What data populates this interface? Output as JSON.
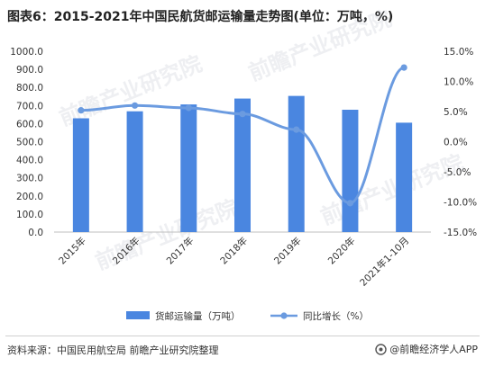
{
  "title": "图表6：2015-2021年中国民航货邮运输量走势图(单位：万吨，%)",
  "source": "资料来源：中国民用航空局 前瞻产业研究院整理",
  "brand": "@前瞻经济学人APP",
  "watermark": "前瞻产业研究院",
  "chart_data": {
    "type": "bar",
    "title": "图表6：2015-2021年中国民航货邮运输量走势图(单位：万吨，%)",
    "categories": [
      "2015年",
      "2016年",
      "2017年",
      "2018年",
      "2019年",
      "2020年",
      "2021年1-10月"
    ],
    "series": [
      {
        "name": "货邮运输量（万吨）",
        "type": "bar",
        "axis": "left",
        "color": "#4A86E0",
        "values": [
          629.3,
          668.0,
          705.9,
          738.5,
          753.1,
          676.6,
          605.0
        ]
      },
      {
        "name": "同比增长（%）",
        "type": "line",
        "axis": "right",
        "color": "#6B9BE0",
        "values": [
          5.2,
          6.0,
          5.6,
          4.6,
          2.0,
          -10.2,
          12.3
        ]
      }
    ],
    "y_left": {
      "min": 0,
      "max": 1000,
      "step": 100,
      "ticks": [
        "0.0",
        "100.0",
        "200.0",
        "300.0",
        "400.0",
        "500.0",
        "600.0",
        "700.0",
        "800.0",
        "900.0",
        "1000.0"
      ]
    },
    "y_right": {
      "min": -15,
      "max": 15,
      "step": 5,
      "ticks": [
        "-15.0%",
        "-10.0%",
        "-5.0%",
        "0.0%",
        "5.0%",
        "10.0%",
        "15.0%"
      ]
    },
    "grid": false,
    "legend": "bottom"
  }
}
